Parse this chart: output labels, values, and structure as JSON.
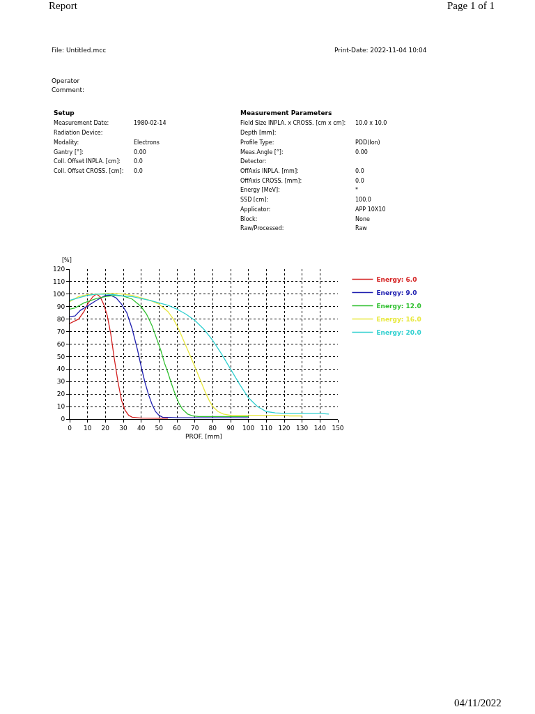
{
  "chart_data": {
    "type": "line",
    "title": "Report",
    "xlabel": "PROF. [mm]",
    "ylabel": "[%]",
    "xlim": [
      0,
      150
    ],
    "xticks": [
      0,
      10,
      20,
      30,
      40,
      50,
      60,
      70,
      80,
      90,
      100,
      110,
      120,
      130,
      140,
      150
    ],
    "ylim": [
      0,
      120
    ],
    "yticks": [
      0,
      10,
      20,
      30,
      40,
      50,
      60,
      70,
      80,
      90,
      100,
      110,
      120
    ],
    "grid": true,
    "legend": "right",
    "marker": "none",
    "line_style": "solid",
    "series": [
      {
        "name": "Energy: 6.0",
        "color": "#d42020",
        "x": [
          0,
          5,
          8,
          10,
          13,
          15,
          17,
          19,
          21,
          23,
          25,
          27,
          29,
          31,
          33,
          35,
          40,
          50,
          55
        ],
        "values": [
          76.5,
          80,
          86,
          92,
          98,
          100,
          98,
          92,
          83,
          68,
          48,
          30,
          15,
          7,
          3,
          1.5,
          0.8,
          0.6,
          0.6
        ]
      },
      {
        "name": "Energy: 9.0",
        "color": "#2020b0",
        "x": [
          0,
          3,
          6,
          10,
          15,
          20,
          23,
          26,
          29,
          32,
          35,
          38,
          40,
          42,
          44,
          46,
          48,
          50,
          52,
          56,
          60,
          80,
          100
        ],
        "values": [
          82,
          82.5,
          87,
          90.5,
          95,
          99,
          99,
          97,
          92,
          85,
          72,
          55,
          42,
          30,
          20,
          12,
          6,
          3,
          1.5,
          1.3,
          1,
          1,
          1
        ]
      },
      {
        "name": "Energy: 12.0",
        "color": "#30c030",
        "x": [
          0,
          3,
          8,
          15,
          20,
          25,
          30,
          35,
          40,
          43,
          46,
          49,
          51,
          53,
          55,
          57,
          59,
          61,
          63,
          66,
          69,
          72,
          80,
          100
        ],
        "values": [
          88,
          89,
          93,
          96.5,
          98,
          99,
          98.5,
          96,
          90,
          84,
          75,
          63,
          55,
          45,
          37,
          28,
          20,
          13,
          8,
          4,
          2.5,
          2,
          2,
          2
        ]
      },
      {
        "name": "Energy: 16.0",
        "color": "#e8e83c",
        "x": [
          0,
          5,
          10,
          15,
          20,
          25,
          30,
          35,
          40,
          45,
          50,
          55,
          58,
          61,
          64,
          67,
          70,
          72,
          74,
          76,
          78,
          80,
          83,
          86,
          90,
          100,
          120,
          123,
          130
        ],
        "values": [
          94,
          98,
          99.5,
          100,
          100.5,
          100.5,
          100,
          99,
          97,
          95,
          92,
          86,
          80,
          72,
          62,
          52,
          42,
          35,
          28,
          21,
          15,
          10,
          6,
          4,
          3,
          3,
          3,
          2.5,
          2.5
        ]
      },
      {
        "name": "Energy: 20.0",
        "color": "#30d0d0",
        "x": [
          0,
          5,
          10,
          15,
          20,
          25,
          30,
          35,
          40,
          45,
          50,
          55,
          60,
          65,
          70,
          75,
          80,
          85,
          90,
          95,
          100,
          105,
          110,
          115,
          120,
          130,
          140,
          145
        ],
        "values": [
          95,
          97,
          99,
          100,
          100,
          99.5,
          98.5,
          98,
          96.5,
          95,
          93,
          91,
          88,
          84,
          79,
          72,
          63,
          52,
          40,
          28,
          17,
          10,
          6,
          5,
          4.5,
          4.5,
          4.5,
          4
        ]
      }
    ],
    "annotations": [
      "Page 1 of 1",
      "File: Untitled.mcc",
      "Print-Date: 2022-11-04 10:04",
      "Operator",
      "Comment:",
      "Setup",
      "Measurement Parameters",
      "Measurement Date:",
      "1980-02-14",
      "Radiation Device:",
      "Modality:",
      "Electrons",
      "Gantry [°]:",
      "0.00",
      "Coll. Offset INPLA. [cm]:",
      "0.0",
      "Coll. Offset CROSS. [cm]:",
      "0.0",
      "Field Size INPLA. x CROSS. [cm x cm]:",
      "10.0 x 10.0",
      "Depth [mm]:",
      "Profile Type:",
      "PDD(Ion)",
      "Meas.Angle [°]:",
      "0.00",
      "Detector:",
      "OffAxis INPLA. [mm]:",
      "0.0",
      "OffAxis CROSS. [mm]:",
      "0.0",
      "Energy [MeV]:",
      "*",
      "SSD [cm]:",
      "100.0",
      "Applicator:",
      "APP 10X10",
      "Block:",
      "None",
      "Raw/Processed:",
      "Raw",
      "04/11/2022"
    ]
  }
}
